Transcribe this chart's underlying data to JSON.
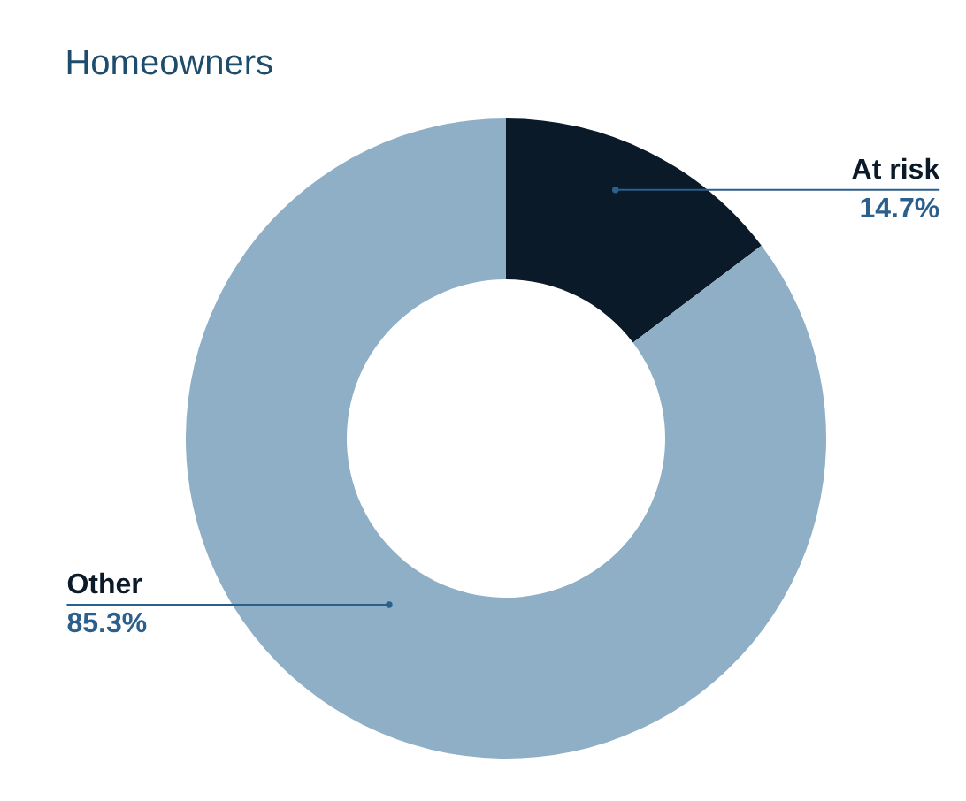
{
  "chart_data": {
    "type": "donut",
    "title": "Homeowners",
    "categories": [
      "At risk",
      "Other"
    ],
    "values": [
      14.7,
      85.3
    ],
    "colors": [
      "#0b1a28",
      "#8eafc5"
    ],
    "value_labels": [
      "14.7%",
      "85.3%"
    ]
  }
}
